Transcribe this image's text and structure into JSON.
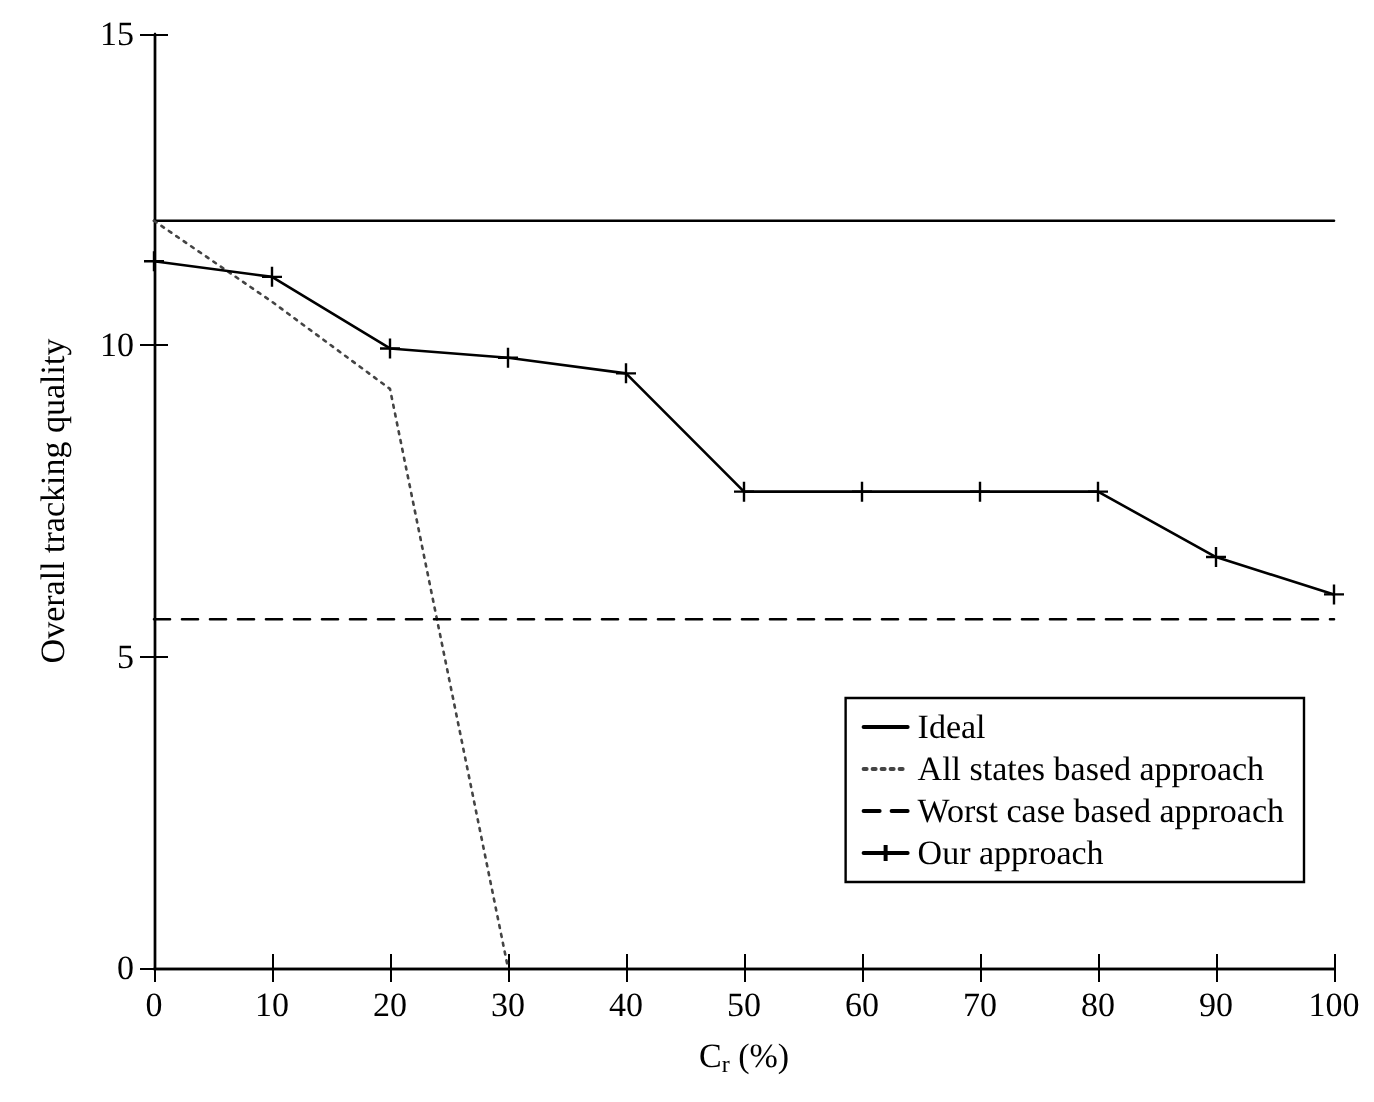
{
  "chart_data": {
    "type": "line",
    "xlabel": "C$_{r}$ (%)",
    "ylabel": "Overall tracking quality",
    "xlim": [
      0,
      100
    ],
    "xticks": [
      0,
      10,
      20,
      30,
      40,
      50,
      60,
      70,
      80,
      90,
      100
    ],
    "ylim": [
      0,
      15
    ],
    "yticks": [
      0,
      5,
      10,
      15
    ],
    "grid": false,
    "legend": "bottom right",
    "series": [
      {
        "name": "Ideal",
        "color": "#000000",
        "x": [
          0,
          100
        ],
        "values": [
          12,
          12
        ],
        "line_style": "solid",
        "marker": "none"
      },
      {
        "name": "All states based approach",
        "color": "#444444",
        "x": [
          0,
          10,
          20,
          30
        ],
        "values": [
          12,
          10.7,
          9.3,
          0
        ],
        "line_style": "dotted",
        "marker": "none"
      },
      {
        "name": "Worst case based approach",
        "color": "#000000",
        "x": [
          0,
          100
        ],
        "values": [
          5.6,
          5.6
        ],
        "line_style": "dashed",
        "marker": "none"
      },
      {
        "name": "Our approach",
        "color": "#000000",
        "x": [
          0,
          10,
          20,
          30,
          40,
          50,
          60,
          70,
          80,
          90,
          100
        ],
        "values": [
          11.35,
          11.1,
          9.95,
          9.8,
          9.55,
          7.65,
          7.65,
          7.65,
          7.65,
          6.6,
          6.0
        ],
        "line_style": "solid",
        "marker": "cross"
      }
    ]
  }
}
